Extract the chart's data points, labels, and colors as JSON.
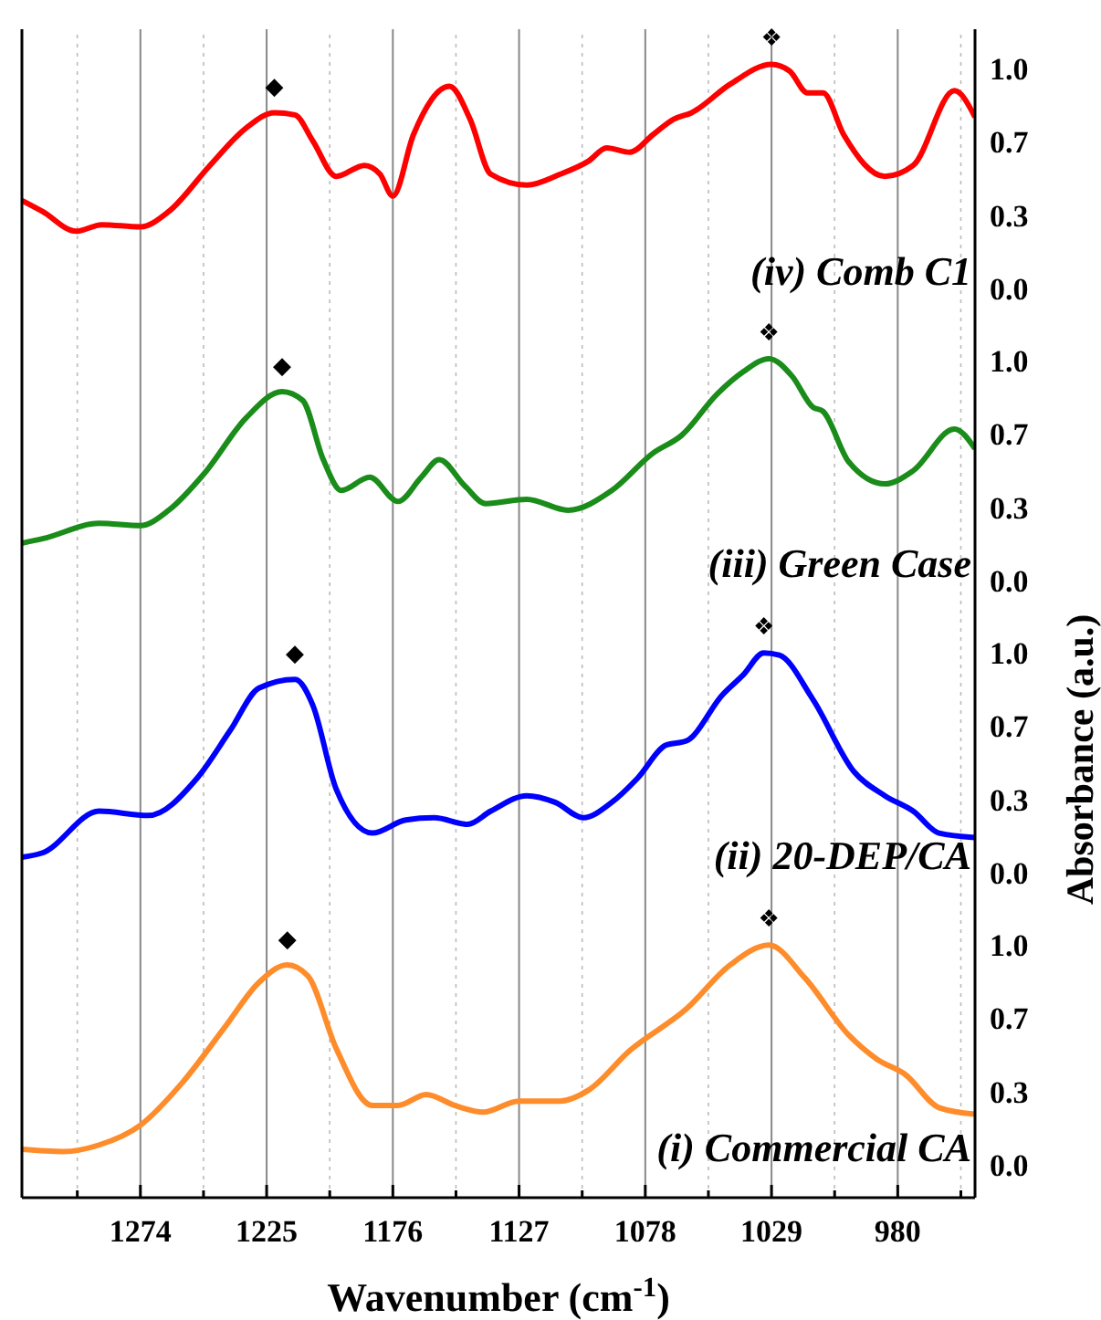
{
  "chart_data": [
    {
      "type": "line",
      "annotations": [
        "(iv) Comb C1",
        {
          "text": "◆",
          "x": 1222,
          "y": 0.8
        },
        {
          "text": "❖",
          "x": 1029,
          "y": 1.02
        }
      ],
      "x": [
        1320,
        1312,
        1299,
        1289,
        1274,
        1263,
        1247,
        1233,
        1222,
        1214,
        1207,
        1198,
        1187,
        1181,
        1176,
        1168,
        1154,
        1146,
        1138,
        1124,
        1111,
        1100,
        1093,
        1084,
        1075,
        1067,
        1060,
        1045,
        1029,
        1022,
        1015,
        1009,
        1001,
        985,
        974,
        958,
        950
      ],
      "values": [
        0.4,
        0.35,
        0.26,
        0.29,
        0.28,
        0.35,
        0.56,
        0.73,
        0.8,
        0.79,
        0.67,
        0.51,
        0.56,
        0.52,
        0.42,
        0.7,
        0.92,
        0.77,
        0.52,
        0.47,
        0.52,
        0.58,
        0.64,
        0.62,
        0.7,
        0.77,
        0.8,
        0.93,
        1.02,
        0.99,
        0.89,
        0.89,
        0.7,
        0.51,
        0.56,
        0.9,
        0.78
      ],
      "color": "#ff0000",
      "marker": "none",
      "grid": "x",
      "tick_labels": "y",
      "xlim": [
        1320,
        950
      ],
      "ylim": [
        -0.15,
        1.18
      ],
      "xticks": [
        {
          "value": 1298.5,
          "label": null
        },
        1274,
        {
          "value": 1249.5,
          "label": null
        },
        1225,
        {
          "value": 1200.5,
          "label": null
        },
        1176,
        {
          "value": 1151.5,
          "label": null
        },
        1127,
        {
          "value": 1102.5,
          "label": null
        },
        1078,
        {
          "value": 1053.5,
          "label": null
        },
        1029,
        {
          "value": 1004.5,
          "label": null
        },
        980,
        {
          "value": 955.5,
          "label": null
        }
      ],
      "yticks": [
        {
          "value": 0,
          "label": "0.0"
        },
        {
          "value": 0.333,
          "label": "0.3"
        },
        {
          "value": 0.667,
          "label": "0.7"
        },
        {
          "value": 1,
          "label": "1.0"
        }
      ]
    },
    {
      "type": "line",
      "annotations": [
        "(iii) Green Case",
        {
          "text": "◆",
          "x": 1219,
          "y": 0.86
        },
        {
          "text": "❖",
          "x": 1030,
          "y": 1.01
        }
      ],
      "x": [
        1320,
        1312,
        1290,
        1274,
        1263,
        1249,
        1233,
        1219,
        1211,
        1203,
        1196,
        1185,
        1174,
        1165,
        1158,
        1148,
        1140,
        1124,
        1108,
        1091,
        1075,
        1064,
        1050,
        1040,
        1030,
        1021,
        1013,
        1009,
        999,
        985,
        974,
        958,
        950
      ],
      "values": [
        0.17,
        0.19,
        0.26,
        0.25,
        0.32,
        0.49,
        0.74,
        0.86,
        0.82,
        0.55,
        0.41,
        0.47,
        0.36,
        0.47,
        0.55,
        0.43,
        0.35,
        0.37,
        0.32,
        0.41,
        0.58,
        0.66,
        0.85,
        0.95,
        1.01,
        0.93,
        0.79,
        0.77,
        0.54,
        0.44,
        0.5,
        0.69,
        0.6
      ],
      "color": "#1a8c1a",
      "marker": "none",
      "grid": "x",
      "tick_labels": "y",
      "xlim": [
        1320,
        950
      ],
      "ylim": [
        -0.15,
        1.18
      ],
      "xticks": [
        {
          "value": 1298.5,
          "label": null
        },
        1274,
        {
          "value": 1249.5,
          "label": null
        },
        1225,
        {
          "value": 1200.5,
          "label": null
        },
        1176,
        {
          "value": 1151.5,
          "label": null
        },
        1127,
        {
          "value": 1102.5,
          "label": null
        },
        1078,
        {
          "value": 1053.5,
          "label": null
        },
        1029,
        {
          "value": 1004.5,
          "label": null
        },
        980,
        {
          "value": 955.5,
          "label": null
        }
      ],
      "yticks": [
        {
          "value": 0,
          "label": "0.0"
        },
        {
          "value": 0.333,
          "label": "0.3"
        },
        {
          "value": 0.667,
          "label": "0.7"
        },
        {
          "value": 1,
          "label": "1.0"
        }
      ]
    },
    {
      "type": "line",
      "ylabel": "Absorbance (a.u.)",
      "annotations": [
        "(ii) 20-DEP/CA",
        {
          "text": "◆",
          "x": 1214,
          "y": 0.88
        },
        {
          "text": "❖",
          "x": 1032,
          "y": 1.0
        }
      ],
      "x": [
        1320,
        1312,
        1290,
        1271,
        1252,
        1239,
        1228,
        1214,
        1207,
        1198,
        1184,
        1171,
        1160,
        1147,
        1138,
        1124,
        1113,
        1102,
        1091,
        1081,
        1070,
        1062,
        1048,
        1040,
        1032,
        1026,
        1013,
        997,
        985,
        974,
        964,
        950
      ],
      "values": [
        0.07,
        0.09,
        0.28,
        0.26,
        0.43,
        0.65,
        0.84,
        0.88,
        0.76,
        0.38,
        0.18,
        0.24,
        0.25,
        0.22,
        0.28,
        0.35,
        0.32,
        0.25,
        0.32,
        0.43,
        0.58,
        0.6,
        0.81,
        0.9,
        1.0,
        0.99,
        0.79,
        0.46,
        0.35,
        0.28,
        0.18,
        0.16
      ],
      "color": "#0000ff",
      "marker": "none",
      "grid": "x",
      "tick_labels": "y",
      "xlim": [
        1320,
        950
      ],
      "ylim": [
        -0.15,
        1.18
      ],
      "xticks": [
        {
          "value": 1298.5,
          "label": null
        },
        1274,
        {
          "value": 1249.5,
          "label": null
        },
        1225,
        {
          "value": 1200.5,
          "label": null
        },
        1176,
        {
          "value": 1151.5,
          "label": null
        },
        1127,
        {
          "value": 1102.5,
          "label": null
        },
        1078,
        {
          "value": 1053.5,
          "label": null
        },
        1029,
        {
          "value": 1004.5,
          "label": null
        },
        980,
        {
          "value": 955.5,
          "label": null
        }
      ],
      "yticks": [
        {
          "value": 0,
          "label": "0.0"
        },
        {
          "value": 0.333,
          "label": "0.3"
        },
        {
          "value": 0.667,
          "label": "0.7"
        },
        {
          "value": 1,
          "label": "1.0"
        }
      ]
    },
    {
      "type": "line",
      "xlabel": "Wavenumber (cm$^{-1}$)",
      "annotations": [
        "(i) Commercial CA",
        {
          "text": "◆",
          "x": 1217,
          "y": 0.91
        },
        {
          "text": "❖",
          "x": 1030,
          "y": 1.0
        }
      ],
      "x": [
        1320,
        1304,
        1290,
        1274,
        1258,
        1241,
        1228,
        1217,
        1209,
        1198,
        1184,
        1174,
        1163,
        1152,
        1141,
        1127,
        1111,
        1100,
        1084,
        1062,
        1045,
        1030,
        1016,
        999,
        988,
        977,
        964,
        950
      ],
      "values": [
        0.07,
        0.06,
        0.09,
        0.18,
        0.37,
        0.63,
        0.83,
        0.91,
        0.86,
        0.53,
        0.27,
        0.27,
        0.32,
        0.27,
        0.24,
        0.29,
        0.29,
        0.34,
        0.52,
        0.71,
        0.91,
        1.0,
        0.85,
        0.59,
        0.48,
        0.41,
        0.26,
        0.23
      ],
      "color": "#ff8c2a",
      "marker": "none",
      "grid": "x",
      "xlim": [
        1320,
        950
      ],
      "ylim": [
        -0.15,
        1.18
      ],
      "xticks": [
        {
          "value": 1298.5,
          "label": null
        },
        1274,
        {
          "value": 1249.5,
          "label": null
        },
        1225,
        {
          "value": 1200.5,
          "label": null
        },
        1176,
        {
          "value": 1151.5,
          "label": null
        },
        1127,
        {
          "value": 1102.5,
          "label": null
        },
        1078,
        {
          "value": 1053.5,
          "label": null
        },
        1029,
        {
          "value": 1004.5,
          "label": null
        },
        980,
        {
          "value": 955.5,
          "label": null
        }
      ],
      "yticks": [
        {
          "value": 0,
          "label": "0.0"
        },
        {
          "value": 0.333,
          "label": "0.3"
        },
        {
          "value": 0.667,
          "label": "0.7"
        },
        {
          "value": 1,
          "label": "1.0"
        }
      ]
    }
  ]
}
